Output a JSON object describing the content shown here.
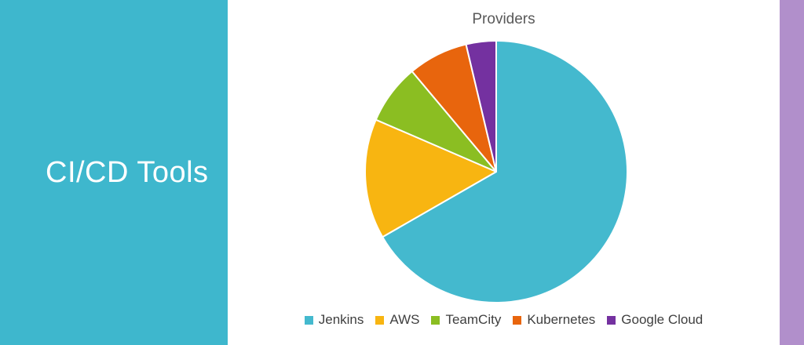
{
  "sidebar": {
    "title": "CI/CD Tools",
    "background": "#3EB7CD",
    "text_color": "#FFFFFF"
  },
  "accent_strip": {
    "color": "#B18FCB"
  },
  "chart_data": {
    "type": "pie",
    "title": "Providers",
    "title_color": "#595959",
    "categories": [
      "Jenkins",
      "AWS",
      "TeamCity",
      "Kubernetes",
      "Google Cloud"
    ],
    "values": [
      66.7,
      14.8,
      7.4,
      7.4,
      3.7
    ],
    "colors": [
      "#44B9CE",
      "#F8B511",
      "#8BBE22",
      "#E8650D",
      "#7431A0"
    ],
    "slice_separator_color": "#FFFFFF",
    "start_angle_deg": 0,
    "direction": "clockwise",
    "legend_position": "bottom",
    "legend_text_color": "#3F3F3F",
    "data_labels": "none"
  }
}
